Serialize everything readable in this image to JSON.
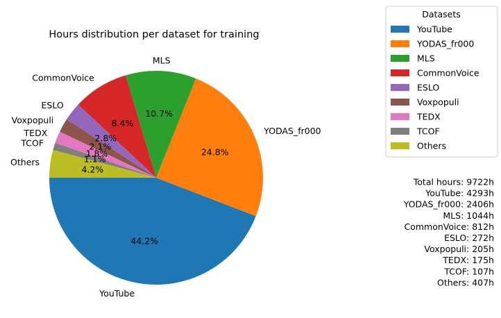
{
  "chart_data": {
    "type": "pie",
    "title": "Hours distribution per dataset for training",
    "categories": [
      "YouTube",
      "YODAS_fr000",
      "MLS",
      "CommonVoice",
      "ESLO",
      "Voxpopuli",
      "TEDX",
      "TCOF",
      "Others"
    ],
    "values": [
      44.2,
      24.8,
      10.7,
      8.4,
      2.8,
      2.1,
      1.8,
      1.1,
      4.2
    ],
    "percent_labels": [
      "44.2%",
      "24.8%",
      "10.7%",
      "8.4%",
      "2.8%",
      "2.1%",
      "1.8%",
      "1.1%",
      "4.2%"
    ],
    "colors": [
      "#1f77b4",
      "#ff7f0e",
      "#2ca02c",
      "#d62728",
      "#9467bd",
      "#8c564b",
      "#e377c2",
      "#7f7f7f",
      "#bcbd22"
    ],
    "start_angle_deg": 180,
    "direction": "counterclockwise",
    "legend": {
      "title": "Datasets",
      "placement": "upper-right outside",
      "entries": [
        "YouTube",
        "YODAS_fr000",
        "MLS",
        "CommonVoice",
        "ESLO",
        "Voxpopuli",
        "TEDX",
        "TCOF",
        "Others"
      ]
    },
    "summary_lines": [
      "Total hours: 9722h",
      "YouTube: 4293h",
      "YODAS_fr000: 2406h",
      "MLS: 1044h",
      "CommonVoice: 812h",
      "ESLO: 272h",
      "Voxpopuli: 205h",
      "TEDX: 175h",
      "TCOF: 107h",
      "Others: 407h"
    ]
  }
}
